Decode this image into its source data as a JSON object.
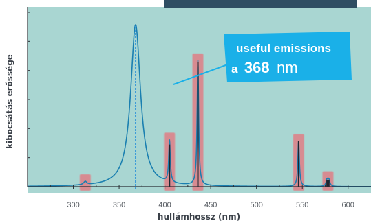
{
  "chart_data": {
    "type": "line",
    "xlabel": "hullámhossz (nm)",
    "ylabel": "kibocsátás erőssége",
    "xlim": [
      250,
      625
    ],
    "ylim": [
      0,
      100
    ],
    "x_ticks": [
      300,
      350,
      400,
      450,
      500,
      550,
      600
    ],
    "grid": false,
    "series": [
      {
        "peaks": [
          {
            "x": 313,
            "y": 2,
            "width": 2
          },
          {
            "x": 368,
            "y": 100,
            "width": 6.5
          },
          {
            "x": 405,
            "y": 26,
            "width": 1.0
          },
          {
            "x": 436,
            "y": 77,
            "width": 1.0
          },
          {
            "x": 546,
            "y": 28,
            "width": 1.0
          },
          {
            "x": 577,
            "y": 4,
            "width": 1.2
          },
          {
            "x": 579,
            "y": 4,
            "width": 1.2
          }
        ]
      }
    ],
    "highlighted_peaks_nm": [
      313,
      405,
      436,
      546,
      578
    ],
    "callout": {
      "line1": "useful emissions",
      "line2_prefix": "a",
      "line2_value": "368",
      "line2_unit": "nm",
      "points_to_nm": 368
    },
    "colors": {
      "plot_background": "#a9d6d2",
      "curve": "#1a7fb0",
      "spike": "#1f2630",
      "highlight": "#e07f86",
      "callout": "#1ab0e8",
      "axis": "#2a2f35"
    }
  }
}
